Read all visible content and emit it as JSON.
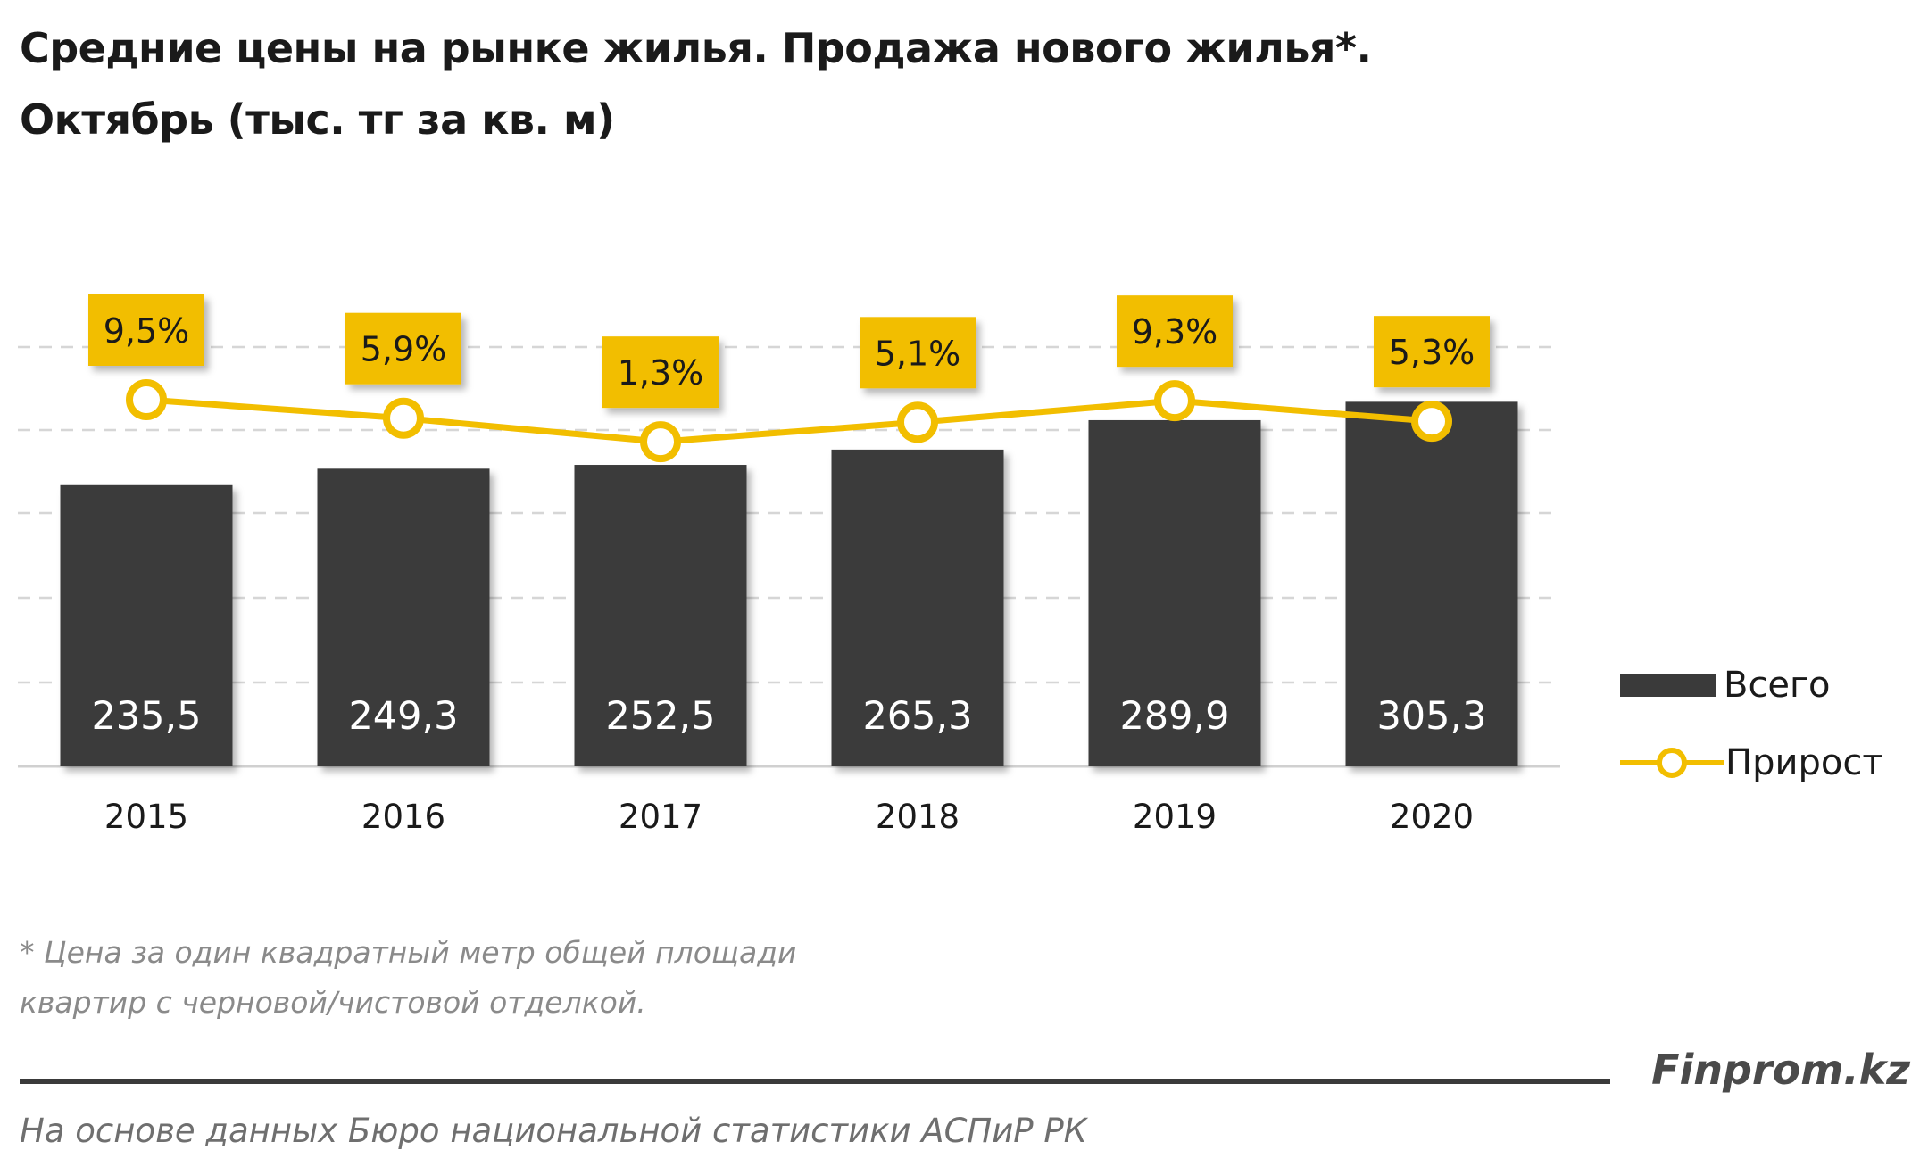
{
  "title": {
    "line1": "Средние цены на рынке жилья. Продажа нового жилья*.",
    "line2": "Октябрь (тыс. тг за кв. м)"
  },
  "chart_data": {
    "type": "bar",
    "categories": [
      "2015",
      "2016",
      "2017",
      "2018",
      "2019",
      "2020"
    ],
    "series": [
      {
        "name": "Всего",
        "type": "bar",
        "values": [
          235.5,
          249.3,
          252.5,
          265.3,
          289.9,
          305.3
        ],
        "labels": [
          "235,5",
          "249,3",
          "252,5",
          "265,3",
          "289,9",
          "305,3"
        ],
        "color": "#3a3a3a"
      },
      {
        "name": "Прирост",
        "type": "line",
        "values": [
          9.5,
          5.9,
          1.3,
          5.1,
          9.3,
          5.3
        ],
        "labels": [
          "9,5%",
          "5,9%",
          "1,3%",
          "5,1%",
          "9,3%",
          "5,3%"
        ],
        "color": "#f2be00"
      }
    ],
    "grid": true,
    "legend_position": "right",
    "xlabel": "",
    "ylabel": ""
  },
  "footnote": {
    "line1": "* Цена за один квадратный метр общей площади",
    "line2": "квартир с черновой/чистовой отделкой."
  },
  "brand": "Finprom.kz",
  "source": "На основе данных  Бюро национальной  статистики АСПиР РК",
  "colors": {
    "bar": "#3a3a3a",
    "line": "#f2be00",
    "label_box": "#f2be00",
    "grid": "#d6d6d6",
    "text": "#1a1a1a"
  }
}
